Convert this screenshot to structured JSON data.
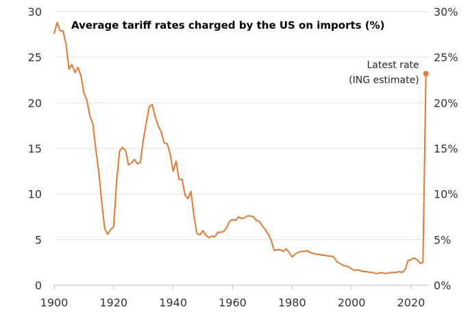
{
  "chart_data": {
    "type": "line",
    "title": "Average tariff rates charged by the US on imports (%)",
    "xlabel": "",
    "ylabel": "",
    "xlim": [
      1900,
      2026
    ],
    "ylim": [
      0,
      30
    ],
    "x_ticks": [
      "1900",
      "1920",
      "1940",
      "1960",
      "1980",
      "2000",
      "2020"
    ],
    "y_ticks_left": [
      "0",
      "5",
      "10",
      "15",
      "20",
      "25",
      "30"
    ],
    "y_ticks_right": [
      "0%",
      "5%",
      "10%",
      "15%",
      "20%",
      "25%",
      "30%"
    ],
    "grid": true,
    "legend": "none",
    "annotation": {
      "lines": [
        "Latest rate",
        "(ING estimate)"
      ],
      "x": 2025,
      "y": 23.2
    },
    "series": [
      {
        "color": "#e8762b",
        "points": [
          [
            1900,
            27.6
          ],
          [
            1901,
            28.8
          ],
          [
            1902,
            27.9
          ],
          [
            1903,
            27.9
          ],
          [
            1904,
            26.4
          ],
          [
            1905,
            23.7
          ],
          [
            1906,
            24.2
          ],
          [
            1907,
            23.3
          ],
          [
            1908,
            23.9
          ],
          [
            1909,
            23.0
          ],
          [
            1910,
            21.1
          ],
          [
            1911,
            20.3
          ],
          [
            1912,
            18.6
          ],
          [
            1913,
            17.7
          ],
          [
            1914,
            14.9
          ],
          [
            1915,
            12.5
          ],
          [
            1916,
            9.1
          ],
          [
            1917,
            6.2
          ],
          [
            1918,
            5.6
          ],
          [
            1919,
            6.1
          ],
          [
            1920,
            6.4
          ],
          [
            1921,
            11.4
          ],
          [
            1922,
            14.7
          ],
          [
            1923,
            15.1
          ],
          [
            1924,
            14.8
          ],
          [
            1925,
            13.2
          ],
          [
            1926,
            13.4
          ],
          [
            1927,
            13.8
          ],
          [
            1928,
            13.3
          ],
          [
            1929,
            13.5
          ],
          [
            1930,
            16.0
          ],
          [
            1931,
            17.8
          ],
          [
            1932,
            19.6
          ],
          [
            1933,
            19.8
          ],
          [
            1934,
            18.4
          ],
          [
            1935,
            17.5
          ],
          [
            1936,
            16.8
          ],
          [
            1937,
            15.6
          ],
          [
            1938,
            15.5
          ],
          [
            1939,
            14.4
          ],
          [
            1940,
            12.5
          ],
          [
            1941,
            13.6
          ],
          [
            1942,
            11.6
          ],
          [
            1943,
            11.6
          ],
          [
            1944,
            9.9
          ],
          [
            1945,
            9.5
          ],
          [
            1946,
            10.3
          ],
          [
            1947,
            7.6
          ],
          [
            1948,
            5.7
          ],
          [
            1949,
            5.5
          ],
          [
            1950,
            6.0
          ],
          [
            1951,
            5.5
          ],
          [
            1952,
            5.2
          ],
          [
            1953,
            5.4
          ],
          [
            1954,
            5.3
          ],
          [
            1955,
            5.8
          ],
          [
            1956,
            5.8
          ],
          [
            1957,
            5.9
          ],
          [
            1958,
            6.3
          ],
          [
            1959,
            7.0
          ],
          [
            1960,
            7.2
          ],
          [
            1961,
            7.1
          ],
          [
            1962,
            7.5
          ],
          [
            1963,
            7.3
          ],
          [
            1964,
            7.4
          ],
          [
            1965,
            7.6
          ],
          [
            1966,
            7.6
          ],
          [
            1967,
            7.5
          ],
          [
            1968,
            7.1
          ],
          [
            1969,
            7.0
          ],
          [
            1970,
            6.5
          ],
          [
            1971,
            6.1
          ],
          [
            1972,
            5.6
          ],
          [
            1973,
            4.9
          ],
          [
            1974,
            3.8
          ],
          [
            1975,
            3.9
          ],
          [
            1976,
            3.9
          ],
          [
            1977,
            3.7
          ],
          [
            1978,
            4.0
          ],
          [
            1979,
            3.6
          ],
          [
            1980,
            3.1
          ],
          [
            1981,
            3.4
          ],
          [
            1982,
            3.6
          ],
          [
            1983,
            3.7
          ],
          [
            1984,
            3.7
          ],
          [
            1985,
            3.8
          ],
          [
            1986,
            3.6
          ],
          [
            1987,
            3.5
          ],
          [
            1988,
            3.4
          ],
          [
            1989,
            3.4
          ],
          [
            1990,
            3.3
          ],
          [
            1991,
            3.3
          ],
          [
            1992,
            3.2
          ],
          [
            1993,
            3.2
          ],
          [
            1994,
            3.1
          ],
          [
            1995,
            2.6
          ],
          [
            1996,
            2.4
          ],
          [
            1997,
            2.2
          ],
          [
            1998,
            2.1
          ],
          [
            1999,
            2.0
          ],
          [
            2000,
            1.8
          ],
          [
            2001,
            1.6
          ],
          [
            2002,
            1.7
          ],
          [
            2003,
            1.6
          ],
          [
            2004,
            1.5
          ],
          [
            2005,
            1.5
          ],
          [
            2006,
            1.4
          ],
          [
            2007,
            1.4
          ],
          [
            2008,
            1.3
          ],
          [
            2009,
            1.3
          ],
          [
            2010,
            1.4
          ],
          [
            2011,
            1.3
          ],
          [
            2012,
            1.3
          ],
          [
            2013,
            1.4
          ],
          [
            2014,
            1.4
          ],
          [
            2015,
            1.4
          ],
          [
            2016,
            1.5
          ],
          [
            2017,
            1.4
          ],
          [
            2018,
            1.7
          ],
          [
            2019,
            2.7
          ],
          [
            2020,
            2.8
          ],
          [
            2021,
            3.0
          ],
          [
            2022,
            2.8
          ],
          [
            2023,
            2.4
          ],
          [
            2024,
            2.5
          ],
          [
            2025,
            23.2
          ]
        ]
      }
    ]
  }
}
